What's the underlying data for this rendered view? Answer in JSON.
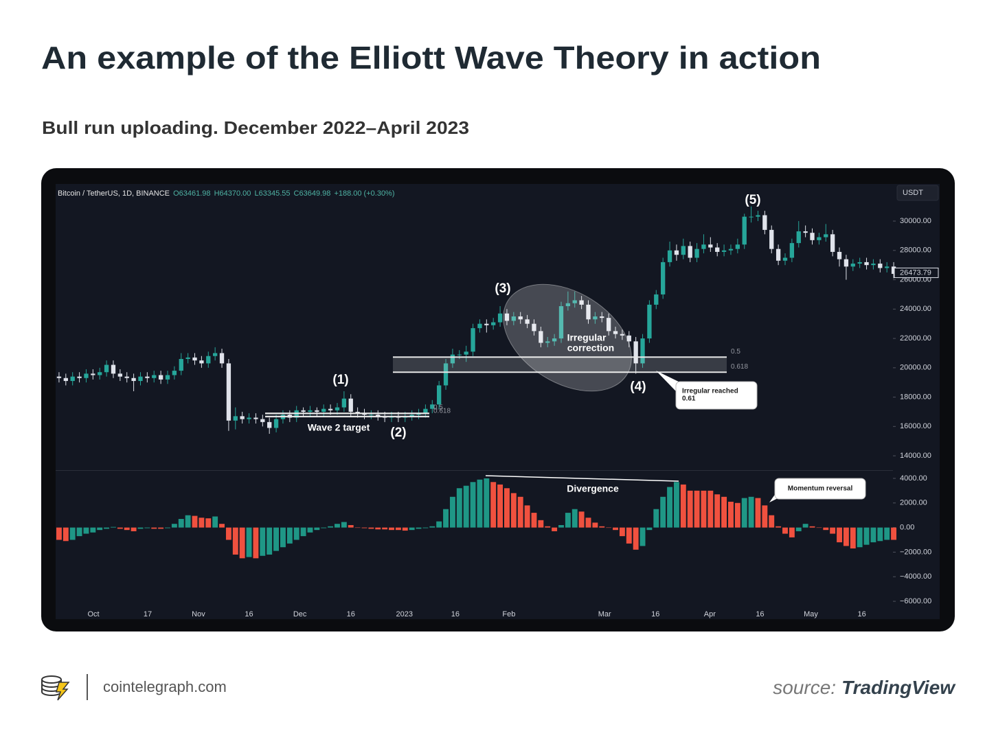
{
  "header": {
    "title": "An example of the Elliott Wave Theory in action",
    "subtitle": "Bull run uploading. December 2022–April 2023"
  },
  "chart_data": [
    {
      "type": "candlestick",
      "info": {
        "symbol": "Bitcoin / TetherUS, 1D, BINANCE",
        "open": "O63461.98",
        "high": "H64370.00",
        "low": "L63345.55",
        "close": "C63649.98",
        "change": "+188.00 (+0.30%)"
      },
      "currency": "USDT",
      "up_color": "#26a69a",
      "down_color": "#e0e3eb",
      "open": [
        19400,
        19300,
        19100,
        19400,
        19300,
        19600,
        19500,
        19700,
        20200,
        19600,
        19400,
        19300,
        19100,
        19400,
        19300,
        19500,
        19200,
        19500,
        19800,
        20600,
        20700,
        20500,
        20300,
        20800,
        21000,
        20300,
        16400,
        16700,
        16500,
        16600,
        16500,
        16300,
        15900,
        16500,
        16800,
        16600,
        17100,
        17000,
        17100,
        17000,
        17200,
        17100,
        17300,
        17900,
        17000,
        16900,
        16800,
        16800,
        16700,
        16600,
        16700,
        16600,
        16700,
        16800,
        16900,
        17200,
        17500,
        18800,
        20300,
        20900,
        20900,
        21100,
        22700,
        23000,
        22900,
        23100,
        23700,
        23200,
        23500,
        23300,
        23000,
        22500,
        21700,
        21800,
        22000,
        24200,
        24400,
        24600,
        24300,
        23300,
        23500,
        23400,
        22500,
        22300,
        22200,
        21800,
        20300,
        22000,
        24300,
        25000,
        27200,
        28000,
        27700,
        28300,
        27500,
        28100,
        28400,
        28200,
        27900,
        28000,
        28100,
        28400,
        30300,
        30300,
        30400,
        29400,
        28100,
        27300,
        27500,
        28500,
        29300,
        29200,
        28700,
        28900,
        29100,
        27900,
        27400,
        26900,
        27100,
        27200,
        27000,
        27100,
        26800,
        26900
      ],
      "high": [
        19700,
        19600,
        19700,
        19700,
        19900,
        19900,
        20000,
        20500,
        20500,
        19900,
        19700,
        19600,
        19700,
        19700,
        19800,
        19800,
        19800,
        20100,
        21000,
        21000,
        21000,
        20800,
        21100,
        21400,
        21300,
        20600,
        17300,
        17000,
        16900,
        16900,
        16800,
        16600,
        16800,
        17100,
        17100,
        17400,
        17300,
        17400,
        17300,
        17500,
        17500,
        17600,
        18400,
        18200,
        17300,
        17200,
        17100,
        17100,
        17000,
        17000,
        17000,
        17000,
        17100,
        17200,
        17500,
        17800,
        19100,
        20600,
        21300,
        21200,
        21500,
        23000,
        23300,
        23300,
        23400,
        24200,
        24000,
        23800,
        23800,
        23600,
        23300,
        22800,
        22100,
        22300,
        24500,
        25200,
        25200,
        24900,
        24600,
        23800,
        23800,
        23700,
        22800,
        22600,
        22500,
        22100,
        22300,
        24600,
        25300,
        27500,
        28600,
        28400,
        28800,
        28600,
        28500,
        29100,
        28900,
        28500,
        28400,
        28400,
        28800,
        30500,
        31000,
        30700,
        30700,
        29700,
        28400,
        27800,
        28800,
        30000,
        29700,
        29500,
        29200,
        29800,
        29400,
        28200,
        27700,
        27400,
        27500,
        27500,
        27400,
        27400,
        27200,
        27200
      ],
      "low": [
        19000,
        18800,
        18800,
        19000,
        19000,
        19200,
        19200,
        19400,
        19300,
        19100,
        19000,
        18400,
        18800,
        19000,
        19000,
        18900,
        18900,
        19200,
        19500,
        20300,
        20200,
        20000,
        20000,
        20500,
        20000,
        15700,
        15800,
        16200,
        16200,
        16200,
        16000,
        15500,
        15600,
        16200,
        16300,
        16300,
        16700,
        16700,
        16700,
        16700,
        16800,
        16800,
        17000,
        16700,
        16600,
        16500,
        16500,
        16400,
        16300,
        16300,
        16300,
        16300,
        16400,
        16500,
        16600,
        16900,
        17200,
        18500,
        20000,
        20600,
        20400,
        20800,
        22400,
        22400,
        22600,
        22800,
        22900,
        22900,
        23000,
        22700,
        22200,
        21400,
        21400,
        21500,
        21700,
        23900,
        24100,
        24000,
        23000,
        23000,
        23100,
        22200,
        22000,
        21900,
        21400,
        19600,
        20000,
        21700,
        24000,
        24700,
        26900,
        27300,
        27400,
        27200,
        27200,
        27800,
        27900,
        27600,
        27600,
        27700,
        27800,
        28100,
        29900,
        30000,
        29100,
        27800,
        27000,
        27000,
        27200,
        28200,
        28900,
        28400,
        28400,
        28600,
        27600,
        26900,
        26000,
        26600,
        26800,
        26700,
        26700,
        26500,
        26500,
        26100
      ],
      "close": [
        19300,
        19100,
        19400,
        19300,
        19600,
        19500,
        19700,
        20200,
        19600,
        19400,
        19300,
        19100,
        19400,
        19300,
        19500,
        19200,
        19500,
        19800,
        20600,
        20700,
        20500,
        20300,
        20800,
        21000,
        20300,
        16400,
        16700,
        16500,
        16600,
        16500,
        16300,
        15900,
        16500,
        16800,
        16600,
        17100,
        17000,
        17100,
        17000,
        17200,
        17100,
        17300,
        17900,
        17000,
        16900,
        16800,
        16800,
        16700,
        16600,
        16700,
        16600,
        16700,
        16800,
        16900,
        17200,
        17500,
        18800,
        20300,
        20900,
        20900,
        21100,
        22700,
        23000,
        22900,
        23100,
        23700,
        23200,
        23500,
        23300,
        23000,
        22500,
        21700,
        21800,
        22000,
        24200,
        24400,
        24600,
        24300,
        23300,
        23500,
        23400,
        22500,
        22300,
        22200,
        21800,
        20300,
        22000,
        24300,
        25000,
        27200,
        28000,
        27700,
        28300,
        27500,
        28100,
        28400,
        28200,
        27900,
        28000,
        28100,
        28400,
        30300,
        30300,
        30400,
        29400,
        28100,
        27300,
        27500,
        28500,
        29300,
        29200,
        28700,
        28900,
        29100,
        27900,
        27400,
        26900,
        27100,
        27200,
        27000,
        27100,
        26800,
        26900,
        26400
      ],
      "ylim": [
        13020,
        32530
      ],
      "yticks": [
        {
          "value": 14000,
          "label": "14000.00"
        },
        {
          "value": 16000,
          "label": "16000.00"
        },
        {
          "value": 18000,
          "label": "18000.00"
        },
        {
          "value": 20000,
          "label": "20000.00"
        },
        {
          "value": 22000,
          "label": "22000.00"
        },
        {
          "value": 24000,
          "label": "24000.00"
        },
        {
          "value": 26000,
          "label": "26000.00"
        },
        {
          "value": 28000,
          "label": "28000.00"
        },
        {
          "value": 30000,
          "label": "30000.00"
        }
      ],
      "last_price": 26473.79,
      "fib_zones": [
        {
          "levels": [
            16900,
            16670
          ],
          "labels": [
            "0.5",
            "0.618"
          ]
        },
        {
          "levels": [
            20730,
            19700
          ],
          "labels": [
            "0.5",
            "0.618"
          ]
        }
      ],
      "annotations": {
        "waves": [
          "(1)",
          "(2)",
          "(3)",
          "(4)",
          "(5)"
        ],
        "wave2_target": "Wave 2 target",
        "correction": [
          "Irregular",
          "correction"
        ],
        "callout": [
          "Irregular reached",
          "0.61"
        ]
      }
    },
    {
      "type": "bar",
      "up_color": "#1f9786",
      "down_color": "#f0513f",
      "values": [
        -1000,
        -1100,
        -1000,
        -700,
        -500,
        -400,
        -200,
        -100,
        50,
        -100,
        -200,
        -300,
        -100,
        -50,
        -100,
        -100,
        -50,
        300,
        700,
        1000,
        950,
        800,
        750,
        900,
        300,
        -1000,
        -2200,
        -2500,
        -2400,
        -2500,
        -2300,
        -2200,
        -1900,
        -1600,
        -1300,
        -1000,
        -700,
        -400,
        -200,
        -50,
        100,
        300,
        450,
        200,
        0,
        -50,
        -100,
        -150,
        -150,
        -200,
        -200,
        -250,
        -200,
        -100,
        -50,
        100,
        500,
        1500,
        2500,
        3200,
        3400,
        3700,
        3900,
        4000,
        3700,
        3500,
        3200,
        2800,
        2500,
        1800,
        1200,
        600,
        100,
        -300,
        200,
        1200,
        1500,
        1300,
        800,
        400,
        100,
        0,
        -200,
        -700,
        -1300,
        -1800,
        -1500,
        -200,
        1500,
        2500,
        3300,
        3700,
        3500,
        3000,
        3000,
        3000,
        3000,
        2700,
        2500,
        2100,
        2000,
        2400,
        2500,
        2400,
        1800,
        1000,
        100,
        -500,
        -800,
        -300,
        300,
        100,
        0,
        -200,
        -500,
        -1200,
        -1500,
        -1700,
        -1600,
        -1400,
        -1200,
        -1100,
        -1000,
        -1000
      ],
      "ylim": [
        -6500,
        4610
      ],
      "yticks": [
        {
          "value": -6000,
          "label": "−6000.00"
        },
        {
          "value": -4000,
          "label": "−4000.00"
        },
        {
          "value": -2000,
          "label": "−2000.00"
        },
        {
          "value": 0,
          "label": "0.00"
        },
        {
          "value": 2000,
          "label": "2000.00"
        },
        {
          "value": 4000,
          "label": "4000.00"
        }
      ],
      "xlim": [
        0,
        124
      ],
      "xticks": [
        {
          "value": 5.57,
          "label": "Oct"
        },
        {
          "value": 13.56,
          "label": "17"
        },
        {
          "value": 21.05,
          "label": "Nov"
        },
        {
          "value": 28.5,
          "label": "16"
        },
        {
          "value": 36.0,
          "label": "Dec"
        },
        {
          "value": 43.5,
          "label": "16"
        },
        {
          "value": 51.4,
          "label": "2023"
        },
        {
          "value": 58.9,
          "label": "16"
        },
        {
          "value": 66.8,
          "label": "Feb"
        },
        {
          "value": 80.9,
          "label": "Mar"
        },
        {
          "value": 88.4,
          "label": "16"
        },
        {
          "value": 96.4,
          "label": "Apr"
        },
        {
          "value": 103.8,
          "label": "16"
        },
        {
          "value": 111.3,
          "label": "May"
        },
        {
          "value": 118.8,
          "label": "16"
        }
      ],
      "annotations": {
        "divergence": "Divergence",
        "callout": "Momentum reversal"
      }
    }
  ],
  "footer": {
    "site": "cointelegraph.com",
    "source_prefix": "source:",
    "source": "TradingView"
  }
}
